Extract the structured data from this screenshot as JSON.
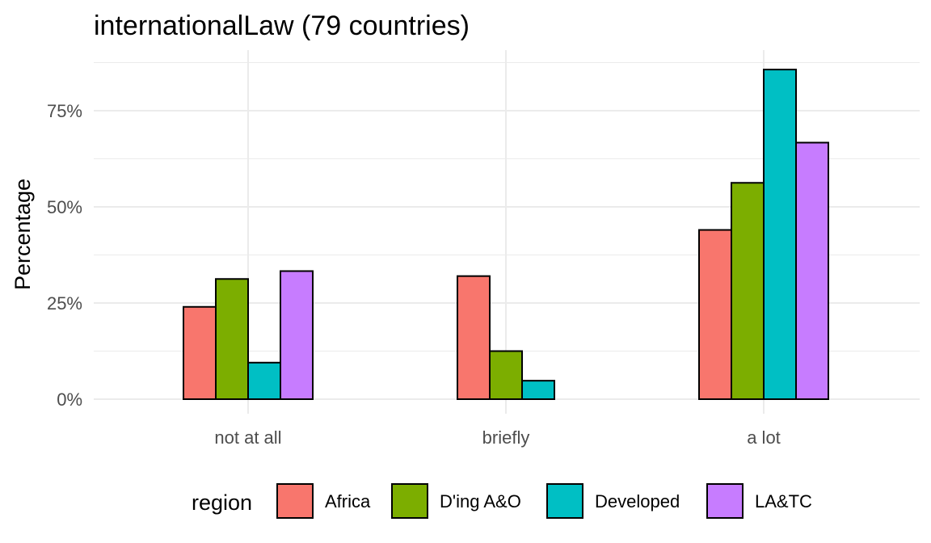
{
  "chart_data": {
    "type": "bar",
    "title": "internationalLaw (79 countries)",
    "ylabel": "Percentage",
    "xlabel": "",
    "categories": [
      "not at all",
      "briefly",
      "a lot"
    ],
    "ylim": [
      0,
      0.875
    ],
    "yticks": [
      0,
      0.25,
      0.5,
      0.75
    ],
    "ytick_labels": [
      "0%",
      "25%",
      "50%",
      "75%"
    ],
    "grid": true,
    "legend": {
      "title": "region",
      "placement": "bottom"
    },
    "series": [
      {
        "name": "Africa",
        "color": "#F8766D",
        "values": [
          0.24,
          0.32,
          0.44
        ]
      },
      {
        "name": "D'ing A&O",
        "color": "#7CAE00",
        "values": [
          0.3125,
          0.125,
          0.5625
        ]
      },
      {
        "name": "Developed",
        "color": "#00BFC4",
        "values": [
          0.095,
          0.048,
          0.857
        ]
      },
      {
        "name": "LA&TC",
        "color": "#C77CFF",
        "values": [
          0.333,
          0,
          0.667
        ]
      }
    ]
  }
}
